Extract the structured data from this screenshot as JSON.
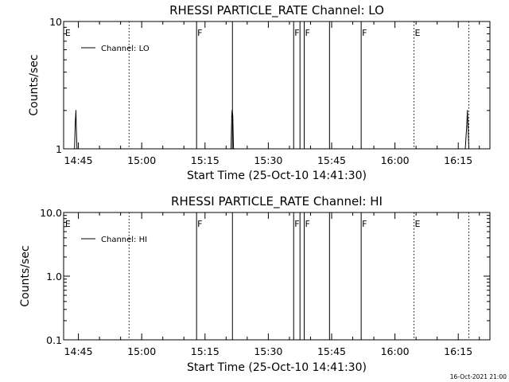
{
  "footer": {
    "timestamp": "16-Oct-2021 21:00"
  },
  "chart_data": [
    {
      "type": "line",
      "title": "RHESSI PARTICLE_RATE Channel: LO",
      "xlabel": "Start Time (25-Oct-10 14:41:30)",
      "ylabel": "Counts/sec",
      "yscale": "log",
      "xlim": [
        "14:41:30",
        "16:22:30"
      ],
      "ylim": [
        1,
        10
      ],
      "x_ticks": [
        "14:45",
        "15:00",
        "15:15",
        "15:30",
        "15:45",
        "16:00",
        "16:15"
      ],
      "y_ticks": [
        "1",
        "10"
      ],
      "legend": {
        "label": "Channel: LO",
        "position": "top-left"
      },
      "series": [
        {
          "name": "Channel: LO",
          "x": [
            "14:43:40",
            "14:44:05",
            "14:44:15",
            "14:44:25",
            "14:44:30",
            "14:44:40",
            "15:21:00",
            "15:21:10",
            "15:21:20",
            "15:21:25",
            "15:21:35",
            "15:21:45",
            "15:21:55",
            "16:16:40",
            "16:17:00",
            "16:17:10",
            "16:17:20",
            "16:17:30"
          ],
          "values": [
            1,
            1,
            1.6,
            2,
            1.5,
            1,
            1,
            1,
            1.8,
            2,
            1.8,
            1,
            1,
            1,
            1.5,
            2,
            1.5,
            1
          ]
        }
      ],
      "markers": [
        {
          "time": "14:41:40",
          "label": "E",
          "style": "none"
        },
        {
          "time": "14:57:00",
          "label": "",
          "style": "dotted"
        },
        {
          "time": "15:13:00",
          "label": "F",
          "style": "solid"
        },
        {
          "time": "15:21:30",
          "label": "",
          "style": "solid"
        },
        {
          "time": "15:36:00",
          "label": "F",
          "style": "solid"
        },
        {
          "time": "15:37:30",
          "label": "",
          "style": "solid"
        },
        {
          "time": "15:38:30",
          "label": "F",
          "style": "solid"
        },
        {
          "time": "15:44:30",
          "label": "",
          "style": "solid"
        },
        {
          "time": "15:52:00",
          "label": "F",
          "style": "solid"
        },
        {
          "time": "16:04:30",
          "label": "E",
          "style": "dotted"
        },
        {
          "time": "16:17:30",
          "label": "",
          "style": "dotted"
        }
      ]
    },
    {
      "type": "line",
      "title": "RHESSI PARTICLE_RATE Channel: HI",
      "xlabel": "Start Time (25-Oct-10 14:41:30)",
      "ylabel": "Counts/sec",
      "yscale": "log",
      "xlim": [
        "14:41:30",
        "16:22:30"
      ],
      "ylim": [
        0.1,
        10
      ],
      "x_ticks": [
        "14:45",
        "15:00",
        "15:15",
        "15:30",
        "15:45",
        "16:00",
        "16:15"
      ],
      "y_ticks": [
        "0.1",
        "1.0",
        "10.0"
      ],
      "legend": {
        "label": "Channel: HI",
        "position": "top-left"
      },
      "series": [
        {
          "name": "Channel: HI",
          "x": [],
          "values": []
        }
      ],
      "markers": [
        {
          "time": "14:41:40",
          "label": "E",
          "style": "none"
        },
        {
          "time": "14:57:00",
          "label": "",
          "style": "dotted"
        },
        {
          "time": "15:13:00",
          "label": "F",
          "style": "solid"
        },
        {
          "time": "15:21:30",
          "label": "",
          "style": "solid"
        },
        {
          "time": "15:36:00",
          "label": "F",
          "style": "solid"
        },
        {
          "time": "15:37:30",
          "label": "",
          "style": "solid"
        },
        {
          "time": "15:38:30",
          "label": "F",
          "style": "solid"
        },
        {
          "time": "15:44:30",
          "label": "",
          "style": "solid"
        },
        {
          "time": "15:52:00",
          "label": "F",
          "style": "solid"
        },
        {
          "time": "16:04:30",
          "label": "E",
          "style": "dotted"
        },
        {
          "time": "16:17:30",
          "label": "",
          "style": "dotted"
        }
      ]
    }
  ]
}
